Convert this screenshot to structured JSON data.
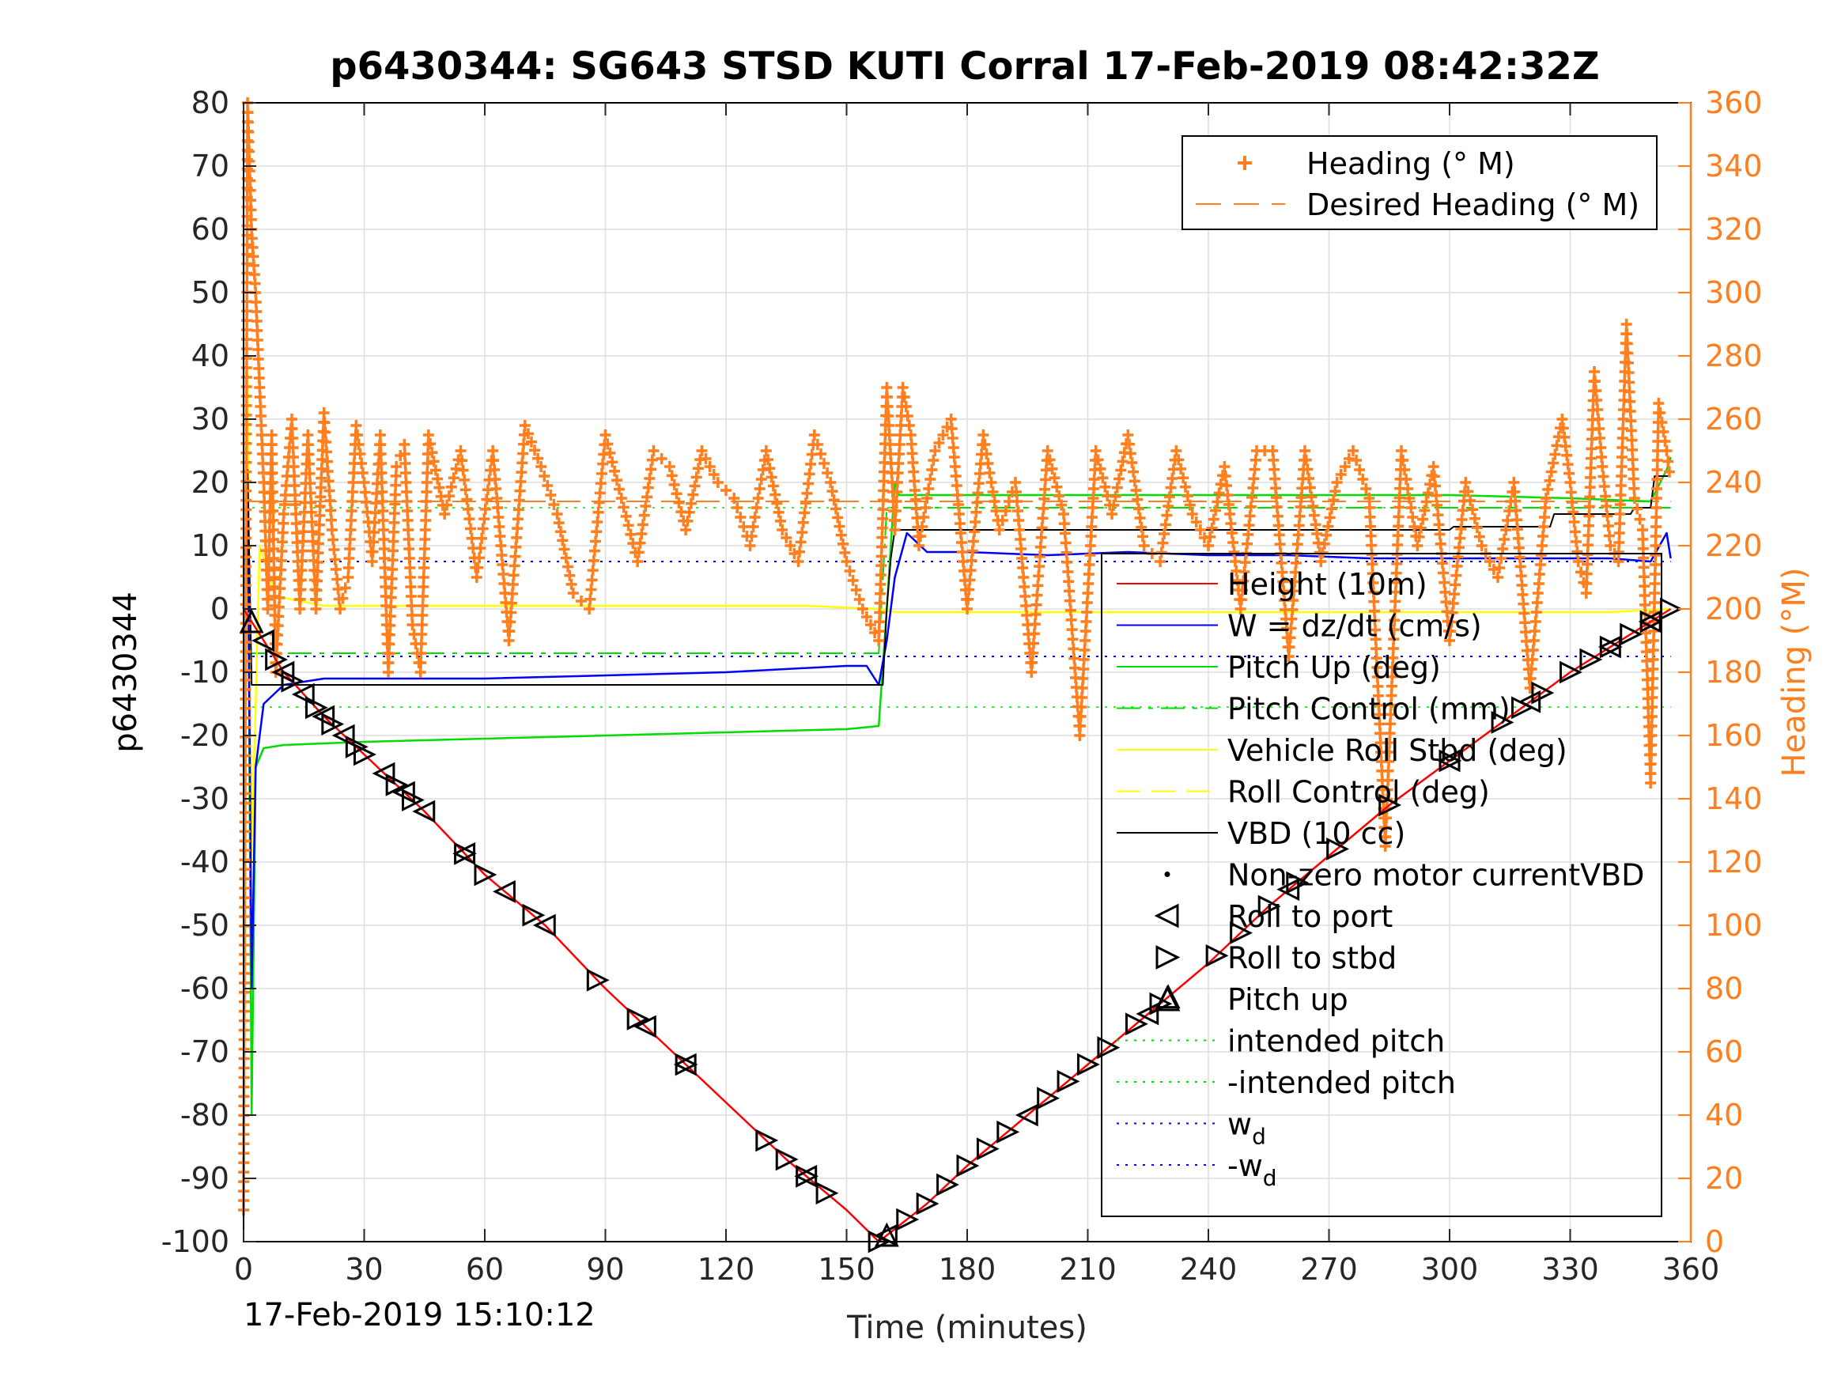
{
  "chart_data": {
    "type": "line",
    "title": "p6430344: SG643 STSD KUTI Corral 17-Feb-2019 08:42:32Z",
    "xlabel": "Time (minutes)",
    "ylabel_left": "p6430344",
    "ylabel_right": "Heading (°M)",
    "xlim": [
      0,
      360
    ],
    "ylim_left": [
      -100,
      80
    ],
    "ylim_right": [
      0,
      360
    ],
    "x_ticks": [
      0,
      30,
      60,
      90,
      120,
      150,
      180,
      210,
      240,
      270,
      300,
      330,
      360
    ],
    "y_ticks_left": [
      80,
      70,
      60,
      50,
      40,
      30,
      20,
      10,
      0,
      -10,
      -20,
      -30,
      -40,
      -50,
      -60,
      -70,
      -80,
      -90,
      -100
    ],
    "y_ticks_right": [
      360,
      340,
      320,
      300,
      280,
      260,
      240,
      220,
      200,
      180,
      160,
      140,
      120,
      100,
      80,
      60,
      40,
      20,
      0
    ],
    "grid": true,
    "timestamp": "17-Feb-2019 15:10:12",
    "colors": {
      "height": "#ff0000",
      "w": "#0000ff",
      "pitch": "#00dd00",
      "roll": "#ffff00",
      "vbd": "#000000",
      "heading": "#ff7f1e"
    },
    "legend_heading": [
      {
        "label": "Heading (° M)",
        "marker": "plus",
        "color": "#ff7f1e"
      },
      {
        "label": "Desired Heading (° M)",
        "marker": "dash",
        "color": "#ff7f1e"
      }
    ],
    "legend_main": [
      {
        "label": "Height (10m)",
        "style": "solid",
        "color": "#ff0000"
      },
      {
        "label": "W = dz/dt (cm/s)",
        "style": "solid",
        "color": "#0000ff"
      },
      {
        "label": "Pitch Up (deg)",
        "style": "solid",
        "color": "#00dd00"
      },
      {
        "label": "Pitch Control (mm)",
        "style": "dashdot",
        "color": "#00dd00"
      },
      {
        "label": "Vehicle Roll Stbd (deg)",
        "style": "solid",
        "color": "#ffff00"
      },
      {
        "label": "Roll Control (deg)",
        "style": "dash",
        "color": "#ffff00"
      },
      {
        "label": "VBD (10 cc)",
        "style": "solid",
        "color": "#000000"
      },
      {
        "label": "Non-zero motor currentVBD",
        "style": "dot-marker",
        "color": "#000000"
      },
      {
        "label": "Roll to port",
        "style": "tri-left",
        "color": "#000000"
      },
      {
        "label": "Roll to stbd",
        "style": "tri-right",
        "color": "#000000"
      },
      {
        "label": "Pitch up",
        "style": "tri-up",
        "color": "#000000"
      },
      {
        "label": "intended pitch",
        "style": "dotted",
        "color": "#00dd00"
      },
      {
        "label": "-intended pitch",
        "style": "dotted",
        "color": "#00dd00"
      },
      {
        "label": "w",
        "sub": "d",
        "style": "dotted",
        "color": "#0000ff"
      },
      {
        "label": "-w",
        "sub": "d",
        "style": "dotted",
        "color": "#0000ff"
      }
    ],
    "series": [
      {
        "name": "Height (10m)",
        "axis": "left",
        "x": [
          0,
          5,
          10,
          20,
          30,
          45,
          60,
          75,
          90,
          105,
          120,
          135,
          150,
          158,
          160,
          170,
          180,
          195,
          210,
          225,
          240,
          255,
          270,
          285,
          300,
          315,
          330,
          345,
          355
        ],
        "y": [
          0,
          -5,
          -10,
          -17,
          -23,
          -32,
          -42,
          -50,
          -60,
          -69,
          -78,
          -87,
          -95,
          -100,
          -99,
          -94,
          -88,
          -80,
          -72,
          -64,
          -56,
          -47,
          -39,
          -31,
          -24,
          -17,
          -10,
          -4,
          0
        ]
      },
      {
        "name": "W = dz/dt (cm/s)",
        "axis": "left",
        "x": [
          0,
          1,
          2,
          3,
          5,
          10,
          20,
          40,
          60,
          90,
          120,
          150,
          155,
          158,
          160,
          162,
          165,
          170,
          180,
          200,
          220,
          240,
          260,
          280,
          300,
          320,
          340,
          350,
          354,
          355
        ],
        "y": [
          0,
          20,
          -60,
          -25,
          -15,
          -12,
          -11,
          -11,
          -11,
          -10.5,
          -10,
          -9,
          -9,
          -12,
          -5,
          5,
          12,
          9,
          9,
          8.5,
          9,
          8.5,
          8.5,
          8,
          8,
          8,
          8,
          7.5,
          12,
          8
        ]
      },
      {
        "name": "Pitch Up (deg)",
        "axis": "left",
        "x": [
          0,
          1,
          2,
          3,
          5,
          10,
          30,
          60,
          90,
          120,
          150,
          158,
          160,
          162,
          163,
          165,
          180,
          240,
          300,
          330,
          350,
          354,
          355
        ],
        "y": [
          0,
          20,
          -80,
          -25,
          -22,
          -21.5,
          -21,
          -20.5,
          -20,
          -19.5,
          -19,
          -18.5,
          0,
          20,
          18,
          18,
          18,
          18,
          18,
          17.5,
          17,
          22,
          24
        ]
      },
      {
        "name": "Vehicle Roll Stbd (deg)",
        "axis": "left",
        "x": [
          0,
          1,
          2,
          4,
          8,
          20,
          60,
          100,
          140,
          158,
          162,
          180,
          220,
          260,
          300,
          340,
          355
        ],
        "y": [
          0,
          38,
          -40,
          10,
          2,
          0.5,
          0.5,
          0.5,
          0.5,
          0,
          -0.5,
          -0.5,
          -0.5,
          -0.5,
          -0.5,
          -0.5,
          0
        ]
      },
      {
        "name": "VBD (10 cc)",
        "axis": "left",
        "x": [
          0,
          1,
          2,
          158,
          159,
          160,
          161,
          162,
          300,
          301,
          325,
          326,
          345,
          346,
          350,
          351,
          355
        ],
        "y": [
          0,
          22,
          -12,
          -12,
          -12,
          0,
          8,
          12.5,
          12.5,
          13,
          13,
          15,
          15,
          16,
          16,
          21,
          21
        ]
      },
      {
        "name": "Pitch Control (mm)",
        "axis": "left",
        "x": [
          0,
          158,
          160,
          355
        ],
        "y": [
          -7,
          -7,
          16,
          16
        ]
      },
      {
        "name": "intended pitch",
        "axis": "left",
        "x": [
          0,
          355
        ],
        "y": [
          16,
          16
        ]
      },
      {
        "name": "-intended pitch",
        "axis": "left",
        "x": [
          0,
          355
        ],
        "y": [
          -15.5,
          -15.5
        ]
      },
      {
        "name": "w",
        "axis": "left",
        "x": [
          0,
          355
        ],
        "y": [
          7.5,
          7.5
        ]
      },
      {
        "name": "-w",
        "axis": "left",
        "x": [
          0,
          355
        ],
        "y": [
          -7.5,
          -7.5
        ]
      },
      {
        "name": "Desired Heading (° M)",
        "axis": "right",
        "x": [
          0,
          355
        ],
        "y": [
          234,
          234
        ]
      },
      {
        "name": "Heading (° M)",
        "axis": "right",
        "x": [
          0,
          1,
          2,
          3,
          4,
          5,
          6,
          7,
          8,
          10,
          12,
          14,
          16,
          18,
          20,
          22,
          24,
          26,
          28,
          30,
          32,
          34,
          36,
          38,
          40,
          42,
          44,
          46,
          50,
          54,
          58,
          62,
          66,
          70,
          74,
          78,
          82,
          86,
          90,
          94,
          98,
          102,
          106,
          110,
          114,
          118,
          122,
          126,
          130,
          134,
          138,
          142,
          146,
          150,
          154,
          158,
          160,
          162,
          164,
          166,
          168,
          172,
          176,
          180,
          184,
          188,
          192,
          196,
          200,
          204,
          208,
          212,
          216,
          220,
          224,
          228,
          232,
          236,
          240,
          244,
          248,
          252,
          256,
          260,
          264,
          268,
          272,
          276,
          280,
          284,
          288,
          292,
          296,
          300,
          304,
          308,
          312,
          316,
          320,
          324,
          328,
          330,
          332,
          334,
          336,
          338,
          340,
          342,
          344,
          346,
          348,
          350,
          352,
          354,
          355
        ],
        "y": [
          10,
          360,
          320,
          300,
          270,
          240,
          200,
          255,
          180,
          230,
          260,
          200,
          255,
          200,
          262,
          225,
          200,
          210,
          258,
          240,
          215,
          255,
          180,
          245,
          252,
          195,
          180,
          255,
          230,
          250,
          210,
          250,
          190,
          258,
          245,
          230,
          205,
          200,
          255,
          235,
          215,
          250,
          245,
          225,
          250,
          240,
          235,
          220,
          250,
          225,
          215,
          255,
          240,
          215,
          200,
          190,
          270,
          225,
          270,
          255,
          220,
          250,
          260,
          200,
          255,
          225,
          240,
          180,
          250,
          230,
          160,
          250,
          230,
          255,
          220,
          215,
          250,
          230,
          220,
          245,
          200,
          250,
          250,
          185,
          250,
          215,
          240,
          250,
          235,
          125,
          250,
          220,
          245,
          190,
          240,
          220,
          210,
          240,
          175,
          235,
          260,
          240,
          215,
          205,
          275,
          245,
          220,
          215,
          290,
          235,
          225,
          145,
          265,
          250,
          240
        ]
      }
    ],
    "markers": {
      "roll_to_port_x": [
        5,
        10,
        15,
        20,
        25,
        35,
        40,
        45,
        55,
        65,
        75,
        100,
        110,
        140,
        160,
        195,
        225,
        260,
        300,
        320,
        340,
        350
      ],
      "roll_to_stbd_x": [
        8,
        12,
        18,
        22,
        28,
        30,
        38,
        42,
        55,
        60,
        72,
        88,
        98,
        110,
        130,
        135,
        140,
        145,
        158,
        165,
        170,
        175,
        180,
        185,
        190,
        200,
        205,
        210,
        215,
        222,
        228,
        242,
        248,
        255,
        262,
        272,
        285,
        300,
        313,
        318,
        323,
        330,
        335,
        340,
        345,
        350,
        355
      ],
      "pitch_up_x": [
        2,
        160,
        230
      ]
    }
  }
}
